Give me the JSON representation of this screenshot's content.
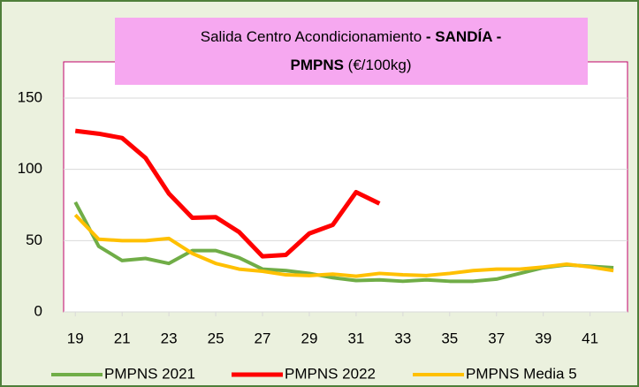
{
  "chart_data": {
    "type": "line",
    "title": [
      {
        "text": "Salida Centro Acondicionamiento ",
        "bold": false
      },
      {
        "text": "- SANDÍA -",
        "bold": true
      },
      {
        "text": "PMPNS",
        "bold": true
      },
      {
        "text": " (€/100kg)",
        "bold": false
      }
    ],
    "x": [
      19,
      20,
      21,
      22,
      23,
      24,
      25,
      26,
      27,
      28,
      29,
      30,
      31,
      32,
      33,
      34,
      35,
      36,
      37,
      38,
      39,
      40,
      41,
      42
    ],
    "series": [
      {
        "name": "PMPNS 2021",
        "color": "#70ad47",
        "values": [
          77,
          46,
          36,
          37.5,
          34,
          43,
          43,
          38,
          30,
          29,
          27,
          24,
          22,
          22.5,
          21.5,
          22.5,
          21.5,
          21.5,
          23,
          27,
          31,
          33,
          32,
          31
        ]
      },
      {
        "name": "PMPNS 2022",
        "color": "#ff0000",
        "values": [
          127,
          125,
          122,
          108,
          83,
          66,
          66.5,
          56,
          39,
          40,
          55,
          61,
          84,
          76,
          null,
          null,
          null,
          null,
          null,
          null,
          null,
          null,
          null,
          null
        ]
      },
      {
        "name": "PMPNS Media 5",
        "color": "#ffc000",
        "values": [
          68,
          51,
          50,
          50,
          51.5,
          41,
          34,
          30,
          28.5,
          26,
          25.5,
          26.5,
          25,
          27,
          26,
          25.5,
          27,
          29,
          30,
          30,
          31.5,
          33.5,
          31.5,
          29
        ]
      }
    ],
    "xlim": [
      18.5,
      42.6
    ],
    "xticks": [
      19,
      21,
      23,
      25,
      27,
      29,
      31,
      33,
      35,
      37,
      39,
      41
    ],
    "ylim": [
      0,
      150
    ],
    "yticks": [
      0,
      50,
      100,
      150
    ],
    "grid": true,
    "legend": "bottom"
  }
}
